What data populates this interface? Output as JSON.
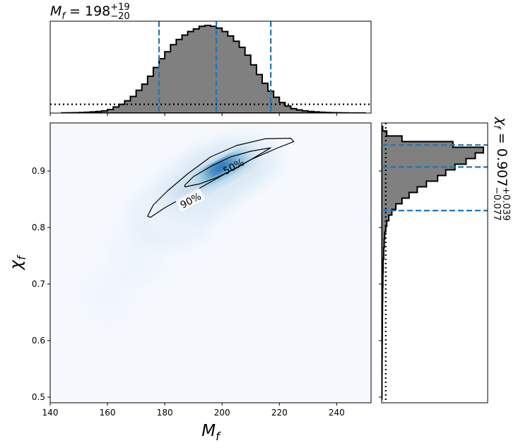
{
  "chart_data": [
    {
      "type": "area",
      "panel": "top-marginal",
      "title_parts": {
        "sym": "M",
        "sub": "f",
        "eq": " = ",
        "value": "198",
        "upper": "+19",
        "lower": "−20"
      },
      "xlim": [
        140,
        252
      ],
      "x_bins": [
        145,
        147,
        149,
        151,
        153,
        155,
        157,
        159,
        161,
        163,
        165,
        167,
        169,
        171,
        173,
        175,
        177,
        179,
        181,
        183,
        185,
        187,
        189,
        191,
        193,
        195,
        197,
        199,
        201,
        203,
        205,
        207,
        209,
        211,
        213,
        215,
        217,
        219,
        221,
        223,
        225,
        227,
        229,
        231,
        233,
        235,
        237,
        239,
        241,
        243,
        245,
        247,
        249
      ],
      "posterior_hist": [
        0.002,
        0.003,
        0.004,
        0.006,
        0.009,
        0.013,
        0.018,
        0.025,
        0.04,
        0.07,
        0.1,
        0.14,
        0.19,
        0.26,
        0.33,
        0.42,
        0.52,
        0.62,
        0.7,
        0.78,
        0.84,
        0.89,
        0.93,
        0.96,
        0.99,
        1.0,
        0.99,
        0.97,
        0.93,
        0.88,
        0.82,
        0.75,
        0.66,
        0.55,
        0.44,
        0.34,
        0.25,
        0.18,
        0.12,
        0.08,
        0.05,
        0.035,
        0.025,
        0.018,
        0.013,
        0.009,
        0.006,
        0.004,
        0.003,
        0.002,
        0.001,
        0.001,
        0.001
      ],
      "prior_level": 0.1,
      "credible_lines": [
        178,
        198,
        217
      ]
    },
    {
      "type": "heatmap",
      "panel": "joint",
      "xlabel_parts": {
        "sym": "M",
        "sub": "f"
      },
      "ylabel_parts": {
        "sym": "χ",
        "sub": "f"
      },
      "xlim": [
        140,
        252
      ],
      "ylim": [
        0.49,
        0.985
      ],
      "x_ticks": [
        "140",
        "160",
        "180",
        "200",
        "220",
        "240"
      ],
      "x_tick_values": [
        140,
        160,
        180,
        200,
        220,
        240
      ],
      "y_ticks": [
        "0.5",
        "0.6",
        "0.7",
        "0.8",
        "0.9"
      ],
      "y_tick_values": [
        0.5,
        0.6,
        0.7,
        0.8,
        0.9
      ],
      "peak": {
        "x": 200,
        "y": 0.907
      },
      "contours": [
        {
          "label": "50%",
          "points": [
            [
              187,
              0.875
            ],
            [
              190,
              0.89
            ],
            [
              196,
              0.908
            ],
            [
              203,
              0.925
            ],
            [
              210,
              0.935
            ],
            [
              217,
              0.941
            ],
            [
              213,
              0.929
            ],
            [
              205,
              0.905
            ],
            [
              198,
              0.888
            ],
            [
              192,
              0.877
            ],
            [
              187,
              0.872
            ]
          ],
          "label_at": [
            204,
            0.908
          ],
          "label_angle": -28
        },
        {
          "label": "90%",
          "points": [
            [
              174,
              0.82
            ],
            [
              176,
              0.84
            ],
            [
              181,
              0.865
            ],
            [
              188,
              0.895
            ],
            [
              196,
              0.925
            ],
            [
              205,
              0.945
            ],
            [
              215,
              0.957
            ],
            [
              224,
              0.958
            ],
            [
              225,
              0.952
            ],
            [
              219,
              0.94
            ],
            [
              210,
              0.92
            ],
            [
              201,
              0.895
            ],
            [
              193,
              0.872
            ],
            [
              186,
              0.852
            ],
            [
              180,
              0.835
            ],
            [
              175,
              0.818
            ],
            [
              174,
              0.82
            ]
          ],
          "label_at": [
            189,
            0.848
          ],
          "label_angle": -28
        }
      ]
    },
    {
      "type": "area",
      "panel": "right-marginal",
      "title_parts": {
        "sym": "χ",
        "sub": "f",
        "eq": " = ",
        "value": "0.907",
        "upper": "+0.039",
        "lower": "−0.077"
      },
      "y_bins": [
        0.507,
        0.532,
        0.557,
        0.582,
        0.607,
        0.632,
        0.657,
        0.682,
        0.707,
        0.732,
        0.757,
        0.772,
        0.787,
        0.797,
        0.807,
        0.817,
        0.827,
        0.837,
        0.847,
        0.857,
        0.867,
        0.877,
        0.887,
        0.897,
        0.907,
        0.917,
        0.927,
        0.937,
        0.947,
        0.957,
        0.967,
        0.975
      ],
      "posterior_hist": [
        0.003,
        0.003,
        0.004,
        0.005,
        0.006,
        0.007,
        0.008,
        0.01,
        0.012,
        0.015,
        0.02,
        0.025,
        0.03,
        0.04,
        0.05,
        0.07,
        0.1,
        0.14,
        0.2,
        0.27,
        0.35,
        0.44,
        0.55,
        0.63,
        0.72,
        0.83,
        0.92,
        1.0,
        0.7,
        0.2,
        0.05,
        0.01
      ],
      "prior_level": 0.04,
      "credible_lines": [
        0.83,
        0.907,
        0.946
      ]
    }
  ]
}
